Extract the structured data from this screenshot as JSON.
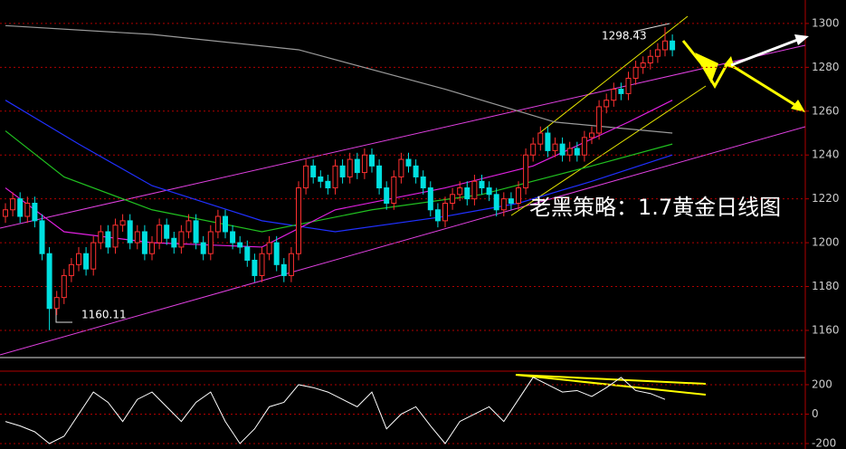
{
  "chart_data": [
    {
      "type": "candlestick",
      "title": "老黑策略：1.7黄金日线图",
      "categories": [
        null,
        null,
        null,
        null,
        null,
        null,
        null,
        null,
        null,
        null,
        null,
        null,
        null,
        null,
        null,
        null,
        null,
        null,
        null,
        null,
        null,
        null,
        null,
        null,
        null,
        null,
        null,
        null,
        null,
        null,
        null,
        null,
        null,
        null,
        null,
        null,
        null,
        null,
        null,
        null,
        null,
        null,
        null,
        null,
        null,
        null,
        null,
        null,
        null,
        null,
        null,
        null,
        null,
        null,
        null,
        null,
        null,
        null,
        null,
        null,
        null,
        null,
        null,
        null,
        null,
        null,
        null,
        null,
        null,
        null,
        null,
        null,
        null,
        null,
        null,
        null,
        null,
        null,
        null,
        null,
        null,
        null,
        null,
        null,
        null,
        null,
        null,
        null,
        null,
        null,
        null,
        null
      ],
      "open": [
        1212,
        1215,
        1220,
        1212,
        1218,
        1210,
        1195,
        1170,
        1175,
        1185,
        1190,
        1195,
        1188,
        1200,
        1205,
        1198,
        1208,
        1210,
        1200,
        1205,
        1195,
        1200,
        1208,
        1202,
        1198,
        1205,
        1210,
        1200,
        1195,
        1205,
        1212,
        1205,
        1200,
        1198,
        1192,
        1185,
        1195,
        1200,
        1190,
        1185,
        1195,
        1225,
        1235,
        1230,
        1228,
        1225,
        1235,
        1230,
        1238,
        1232,
        1240,
        1235,
        1225,
        1218,
        1230,
        1238,
        1235,
        1230,
        1225,
        1215,
        1210,
        1218,
        1222,
        1225,
        1220,
        1228,
        1225,
        1222,
        1215,
        1220,
        1218,
        1225,
        1240,
        1245,
        1250,
        1242,
        1245,
        1240,
        1243,
        1240,
        1248,
        1250,
        1262,
        1265,
        1270,
        1268,
        1275,
        1280,
        1282,
        1285,
        1288,
        1292
      ],
      "high": [
        1218,
        1223,
        1223,
        1221,
        1221,
        1213,
        1198,
        1178,
        1188,
        1193,
        1198,
        1198,
        1203,
        1208,
        1208,
        1211,
        1213,
        1213,
        1208,
        1208,
        1203,
        1211,
        1211,
        1205,
        1208,
        1213,
        1213,
        1203,
        1208,
        1215,
        1215,
        1208,
        1203,
        1201,
        1195,
        1198,
        1203,
        1203,
        1193,
        1198,
        1228,
        1238,
        1238,
        1233,
        1231,
        1238,
        1238,
        1241,
        1241,
        1243,
        1243,
        1238,
        1228,
        1233,
        1241,
        1241,
        1238,
        1233,
        1228,
        1218,
        1221,
        1225,
        1228,
        1228,
        1231,
        1231,
        1228,
        1225,
        1223,
        1223,
        1228,
        1243,
        1248,
        1253,
        1253,
        1248,
        1248,
        1246,
        1246,
        1251,
        1253,
        1265,
        1268,
        1273,
        1273,
        1278,
        1283,
        1285,
        1288,
        1291,
        1298.43,
        1295
      ],
      "low": [
        1209,
        1212,
        1209,
        1209,
        1207,
        1192,
        1160.11,
        1167,
        1172,
        1182,
        1187,
        1185,
        1185,
        1197,
        1195,
        1195,
        1205,
        1197,
        1197,
        1192,
        1192,
        1197,
        1199,
        1195,
        1195,
        1202,
        1197,
        1192,
        1192,
        1202,
        1202,
        1197,
        1195,
        1189,
        1182,
        1182,
        1192,
        1187,
        1182,
        1182,
        1192,
        1222,
        1227,
        1225,
        1222,
        1222,
        1227,
        1227,
        1229,
        1229,
        1232,
        1222,
        1215,
        1215,
        1227,
        1232,
        1227,
        1222,
        1212,
        1207,
        1207,
        1215,
        1219,
        1217,
        1217,
        1222,
        1219,
        1212,
        1212,
        1215,
        1215,
        1222,
        1237,
        1242,
        1239,
        1239,
        1237,
        1237,
        1237,
        1237,
        1245,
        1247,
        1259,
        1262,
        1265,
        1265,
        1272,
        1277,
        1279,
        1282,
        1285,
        1285
      ],
      "close": [
        1215,
        1220,
        1212,
        1218,
        1210,
        1195,
        1170,
        1175,
        1185,
        1190,
        1195,
        1188,
        1200,
        1205,
        1198,
        1208,
        1210,
        1200,
        1205,
        1195,
        1200,
        1208,
        1202,
        1198,
        1205,
        1210,
        1200,
        1195,
        1205,
        1212,
        1205,
        1200,
        1198,
        1192,
        1185,
        1195,
        1200,
        1190,
        1185,
        1195,
        1225,
        1235,
        1230,
        1228,
        1225,
        1235,
        1230,
        1238,
        1232,
        1240,
        1235,
        1225,
        1218,
        1230,
        1238,
        1235,
        1230,
        1225,
        1215,
        1210,
        1218,
        1222,
        1225,
        1220,
        1228,
        1225,
        1222,
        1215,
        1220,
        1218,
        1225,
        1240,
        1245,
        1250,
        1242,
        1245,
        1240,
        1243,
        1240,
        1248,
        1250,
        1262,
        1265,
        1270,
        1268,
        1275,
        1280,
        1282,
        1285,
        1288,
        1292,
        1288
      ],
      "up_color": "#ff3030",
      "down_color": "#00e0e0",
      "lines": [
        {
          "color": "#9a9a9a",
          "x": [
            0,
            20,
            40,
            60,
            75,
            91
          ],
          "values": [
            1299,
            1295,
            1288,
            1270,
            1255,
            1250
          ]
        },
        {
          "color": "#2030ff",
          "x": [
            0,
            10,
            20,
            35,
            45,
            60,
            70,
            80,
            91
          ],
          "values": [
            1265,
            1245,
            1226,
            1210,
            1205,
            1212,
            1218,
            1228,
            1240
          ]
        },
        {
          "color": "#20c020",
          "x": [
            0,
            8,
            20,
            35,
            50,
            65,
            80,
            91
          ],
          "values": [
            1251,
            1230,
            1215,
            1205,
            1215,
            1222,
            1235,
            1245
          ]
        },
        {
          "color": "#e020e0",
          "x": [
            0,
            8,
            20,
            35,
            45,
            60,
            72,
            85,
            91
          ],
          "values": [
            1225,
            1205,
            1200,
            1198,
            1215,
            1225,
            1235,
            1255,
            1265
          ]
        }
      ],
      "annotations": [
        "1298.43",
        "1160.11"
      ],
      "ylim": [
        1147.6,
        1310.7
      ],
      "yticks": [
        1160,
        1180,
        1200,
        1220,
        1240,
        1260,
        1280,
        1300
      ],
      "grid": true
    },
    {
      "type": "line",
      "color": "#ffffff",
      "categories": [
        null,
        null,
        null,
        null,
        null,
        null,
        null,
        null,
        null,
        null,
        null,
        null,
        null,
        null,
        null,
        null,
        null,
        null,
        null,
        null,
        null,
        null,
        null,
        null,
        null,
        null,
        null,
        null,
        null,
        null,
        null,
        null,
        null,
        null,
        null,
        null,
        null,
        null,
        null,
        null,
        null,
        null,
        null,
        null,
        null,
        null
      ],
      "values": [
        -50,
        -80,
        -120,
        -200,
        -150,
        0,
        150,
        80,
        -50,
        100,
        150,
        50,
        -50,
        80,
        150,
        -50,
        -200,
        -100,
        50,
        80,
        200,
        180,
        150,
        100,
        50,
        150,
        -100,
        0,
        50,
        -80,
        -200,
        -50,
        0,
        50,
        -50,
        100,
        250,
        200,
        150,
        160,
        120,
        180,
        250,
        160,
        140,
        100
      ],
      "ylim": [
        -237,
        292
      ],
      "yticks": [
        -200,
        0,
        200
      ],
      "grid": true
    }
  ]
}
